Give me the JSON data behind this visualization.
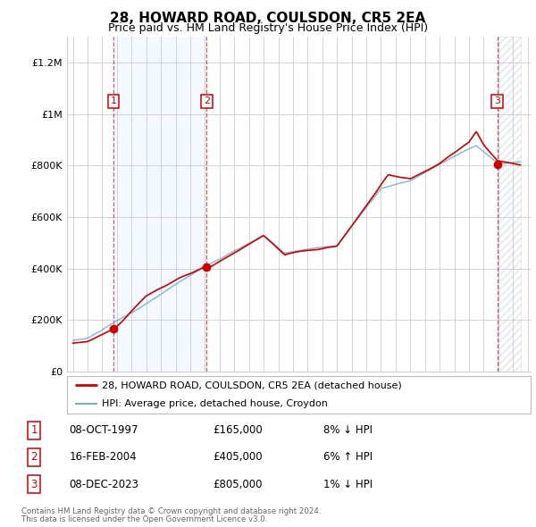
{
  "title": "28, HOWARD ROAD, COULSDON, CR5 2EA",
  "subtitle": "Price paid vs. HM Land Registry's House Price Index (HPI)",
  "ylim": [
    0,
    1300000
  ],
  "yticks": [
    0,
    200000,
    400000,
    600000,
    800000,
    1000000,
    1200000
  ],
  "ytick_labels": [
    "£0",
    "£200K",
    "£400K",
    "£600K",
    "£800K",
    "£1M",
    "£1.2M"
  ],
  "x_start_year": 1995,
  "x_end_year": 2026,
  "sale_points": [
    {
      "year": 1997.77,
      "price": 165000,
      "label": "1"
    },
    {
      "year": 2004.12,
      "price": 405000,
      "label": "2"
    },
    {
      "year": 2023.93,
      "price": 805000,
      "label": "3"
    }
  ],
  "legend_line1": "28, HOWARD ROAD, COULSDON, CR5 2EA (detached house)",
  "legend_line2": "HPI: Average price, detached house, Croydon",
  "table_rows": [
    {
      "num": "1",
      "date": "08-OCT-1997",
      "price": "£165,000",
      "hpi": "8% ↓ HPI"
    },
    {
      "num": "2",
      "date": "16-FEB-2004",
      "price": "£405,000",
      "hpi": "6% ↑ HPI"
    },
    {
      "num": "3",
      "date": "08-DEC-2023",
      "price": "£805,000",
      "hpi": "1% ↓ HPI"
    }
  ],
  "footnote1": "Contains HM Land Registry data © Crown copyright and database right 2024.",
  "footnote2": "This data is licensed under the Open Government Licence v3.0.",
  "red_color": "#cc0000",
  "blue_color": "#7aabcf",
  "light_blue_fill": "#ddeeff",
  "grid_color": "#cccccc",
  "bg_color": "#ffffff"
}
